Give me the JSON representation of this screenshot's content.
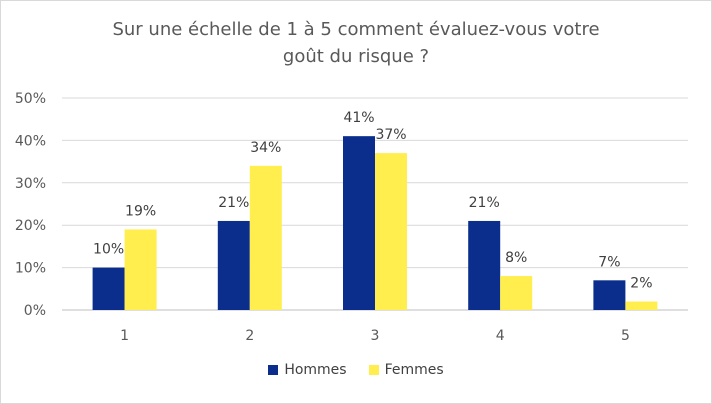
{
  "chart_data": {
    "type": "bar",
    "title": "Sur une échelle de 1 à 5 comment évaluez-vous votre goût du risque ?",
    "title_lines": [
      "Sur une échelle de 1 à 5 comment évaluez-vous votre",
      "goût du risque ?"
    ],
    "categories": [
      "1",
      "2",
      "3",
      "4",
      "5"
    ],
    "series": [
      {
        "name": "Hommes",
        "color": "#0b2d8c",
        "values": [
          10,
          21,
          41,
          21,
          7
        ],
        "labels": [
          "10%",
          "21%",
          "41%",
          "21%",
          "7%"
        ]
      },
      {
        "name": "Femmes",
        "color": "#ffee4d",
        "values": [
          19,
          34,
          37,
          8,
          2
        ],
        "labels": [
          "19%",
          "34%",
          "37%",
          "8%",
          "2%"
        ]
      }
    ],
    "ylim": [
      0,
      50
    ],
    "yticks": [
      0,
      10,
      20,
      30,
      40,
      50
    ],
    "ytick_labels": [
      "0%",
      "10%",
      "20%",
      "30%",
      "40%",
      "50%"
    ],
    "grid": true,
    "legend": "bottom"
  }
}
